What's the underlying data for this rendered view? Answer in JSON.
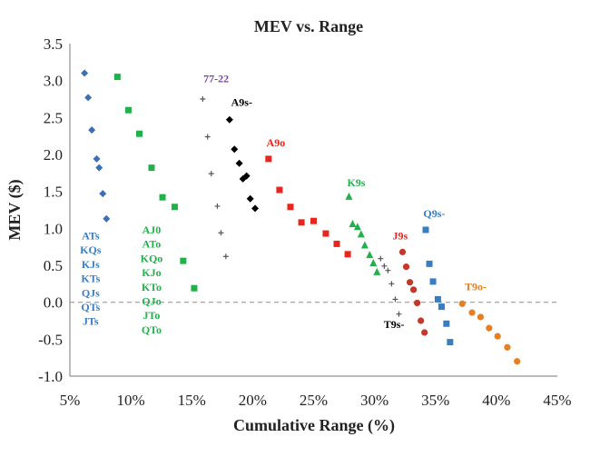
{
  "chart_data": {
    "type": "scatter",
    "title": "MEV vs. Range",
    "xlabel": "Cumulative Range (%)",
    "ylabel": "MEV ($)",
    "xlim": [
      5,
      45
    ],
    "ylim": [
      -1.0,
      3.5
    ],
    "xticks": [
      5,
      10,
      15,
      20,
      25,
      30,
      35,
      40,
      45
    ],
    "xtick_labels": [
      "5%",
      "10%",
      "15%",
      "20%",
      "25%",
      "30%",
      "35%",
      "40%",
      "45%"
    ],
    "yticks": [
      -1.0,
      -0.5,
      0.0,
      0.5,
      1.0,
      1.5,
      2.0,
      2.5,
      3.0,
      3.5
    ],
    "ytick_labels": [
      "-1.0",
      "-0.5",
      "0.0",
      "0.5",
      "1.0",
      "1.5",
      "2.0",
      "2.5",
      "3.0",
      "3.5"
    ],
    "reference_line": {
      "y": 0,
      "style": "dashed",
      "color": "#999999"
    },
    "series": [
      {
        "marker": "diamond",
        "color": "#3b6fb6",
        "x": [
          6.2,
          6.5,
          6.8,
          7.2,
          7.4,
          7.7,
          8.0
        ],
        "y": [
          3.1,
          2.77,
          2.33,
          1.94,
          1.82,
          1.47,
          1.13
        ]
      },
      {
        "marker": "square",
        "color": "#22b04b",
        "x": [
          8.9,
          9.8,
          10.7,
          11.7,
          12.6,
          13.6,
          14.3,
          15.2
        ],
        "y": [
          3.05,
          2.6,
          2.28,
          1.82,
          1.42,
          1.29,
          0.56,
          0.19
        ]
      },
      {
        "marker": "plus",
        "color": "#555555",
        "x": [
          15.9,
          16.3,
          16.6,
          17.1,
          17.4,
          17.8
        ],
        "y": [
          2.75,
          2.24,
          1.74,
          1.3,
          0.94,
          0.62
        ]
      },
      {
        "marker": "diamond",
        "color": "#000000",
        "x": [
          18.1,
          18.5,
          18.9,
          19.2,
          19.5,
          19.8,
          20.2
        ],
        "y": [
          2.47,
          2.07,
          1.88,
          1.67,
          1.71,
          1.4,
          1.27
        ]
      },
      {
        "marker": "square",
        "color": "#e8261d",
        "x": [
          21.3,
          22.2,
          23.1,
          24.0,
          25.0,
          26.0,
          26.9,
          27.8
        ],
        "y": [
          1.94,
          1.52,
          1.29,
          1.08,
          1.1,
          0.93,
          0.79,
          0.65
        ]
      },
      {
        "marker": "triangle",
        "color": "#22b04b",
        "x": [
          27.9,
          28.2,
          28.6,
          28.9,
          29.2,
          29.6,
          29.9,
          30.2
        ],
        "y": [
          1.43,
          1.06,
          1.02,
          0.92,
          0.77,
          0.64,
          0.53,
          0.41
        ]
      },
      {
        "marker": "plus",
        "color": "#555555",
        "x": [
          30.5,
          30.8,
          31.1,
          31.4,
          31.7,
          32.0
        ],
        "y": [
          0.59,
          0.49,
          0.43,
          0.25,
          0.04,
          -0.16
        ]
      },
      {
        "marker": "circle",
        "color": "#c0392b",
        "x": [
          32.3,
          32.6,
          32.9,
          33.2,
          33.5,
          33.8,
          34.1
        ],
        "y": [
          0.68,
          0.48,
          0.27,
          0.17,
          -0.01,
          -0.25,
          -0.41
        ]
      },
      {
        "marker": "square",
        "color": "#3a7ec2",
        "x": [
          34.2,
          34.5,
          34.8,
          35.2,
          35.5,
          35.9,
          36.2
        ],
        "y": [
          0.98,
          0.52,
          0.28,
          0.04,
          -0.06,
          -0.29,
          -0.54
        ]
      },
      {
        "marker": "circle",
        "color": "#e67e22",
        "x": [
          37.2,
          38.0,
          38.7,
          39.4,
          40.1,
          40.9,
          41.7
        ],
        "y": [
          -0.02,
          -0.14,
          -0.2,
          -0.35,
          -0.46,
          -0.61,
          -0.8
        ]
      }
    ],
    "annotations": [
      {
        "text": "77-22",
        "x": 17.0,
        "y": 2.98,
        "color": "#7b3fb0"
      },
      {
        "text": "A9s-",
        "x": 19.1,
        "y": 2.66,
        "color": "#000000"
      },
      {
        "text": "A9o",
        "x": 21.9,
        "y": 2.11,
        "color": "#e8261d"
      },
      {
        "text": "K9s",
        "x": 28.5,
        "y": 1.57,
        "color": "#22b04b"
      },
      {
        "text": "Q9s-",
        "x": 34.9,
        "y": 1.15,
        "color": "#3a7ec2"
      },
      {
        "text": "J9s",
        "x": 32.1,
        "y": 0.85,
        "color": "#e8261d"
      },
      {
        "text": "T9o-",
        "x": 38.3,
        "y": 0.16,
        "color": "#e67e22"
      },
      {
        "text": "T9s-",
        "x": 31.6,
        "y": -0.35,
        "color": "#000000"
      }
    ],
    "hand_lists": [
      {
        "color": "#3a7ec2",
        "x": 6.7,
        "y_start": 0.85,
        "labels": [
          "ATs",
          "KQs",
          "KJs",
          "KTs",
          "QJs",
          "QTs",
          "JTs"
        ]
      },
      {
        "color": "#22b04b",
        "x": 11.7,
        "y_start": 0.93,
        "labels": [
          "AJ0",
          "ATo",
          "KQo",
          "KJo",
          "KTo",
          "QJo",
          "JTo",
          "QTo"
        ]
      }
    ]
  }
}
